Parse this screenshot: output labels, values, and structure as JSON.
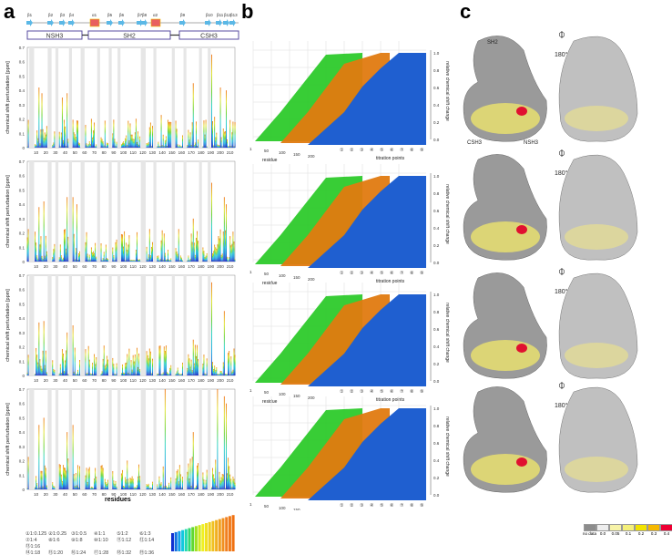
{
  "panels": {
    "a": "a",
    "b": "b",
    "c": "c"
  },
  "topology": {
    "strands": [
      "β1",
      "β2",
      "β3",
      "β4",
      "β5",
      "β6",
      "β7",
      "β8",
      "β9",
      "β10",
      "β11",
      "β12",
      "β13"
    ],
    "helices": [
      "α1",
      "α2"
    ],
    "domains": [
      "NSH3",
      "SH2",
      "CSH3"
    ]
  },
  "structure_labels": {
    "sh2": "SH2",
    "csh3": "CSH3",
    "nsh3": "NSH3",
    "rotation": "180°"
  },
  "colorbar": {
    "labels": [
      "no data",
      "0.0",
      "0.05",
      "0.1",
      "0.2",
      "0.3",
      "0.4",
      "(ppm)"
    ],
    "colors": [
      "#8c8c8c",
      "#eeeeee",
      "#f7f3a8",
      "#f5f07a",
      "#f2e300",
      "#f5b800",
      "#ee0033"
    ]
  },
  "legend": {
    "items": [
      "①1:0.125",
      "②1:0.25",
      "③1:0.5",
      "④1:1",
      "⑤1:2",
      "⑥1:3",
      "⑦1:4",
      "⑧1:6",
      "⑨1:8",
      "⑩1:10",
      "⑪1:12",
      "⑫1:14",
      "⑬1:16",
      "⑭1:18",
      "⑮1:20",
      "⑯1:24",
      "⑰1:28",
      "⑱1:32",
      "⑲1:36"
    ]
  },
  "chart_data": [
    {
      "type": "bar",
      "title": "",
      "xlabel": "residues",
      "ylabel": "chemical shift perturbation [ppm]",
      "xlim": [
        1,
        215
      ],
      "ylim": [
        0,
        0.7
      ],
      "xticks": [
        "10",
        "20",
        "30",
        "40",
        "50",
        "60",
        "70",
        "80",
        "90",
        "100",
        "110",
        "120",
        "130",
        "140",
        "150",
        "160",
        "170",
        "180",
        "190",
        "200",
        "210"
      ],
      "yticks": [
        "0",
        "0.1",
        "0.2",
        "0.3",
        "0.4",
        "0.5",
        "0.6",
        "0.7"
      ],
      "peaks": [
        [
          13,
          0.42
        ],
        [
          16,
          0.38
        ],
        [
          37,
          0.35
        ],
        [
          42,
          0.38
        ],
        [
          120,
          0.38
        ],
        [
          172,
          0.45
        ],
        [
          191,
          0.65
        ],
        [
          200,
          0.42
        ],
        [
          206,
          0.4
        ]
      ]
    },
    {
      "type": "bar",
      "xlabel": "residues",
      "ylabel": "chemical shift perturbation [ppm]",
      "xlim": [
        1,
        215
      ],
      "ylim": [
        0,
        0.7
      ],
      "peaks": [
        [
          13,
          0.38
        ],
        [
          18,
          0.42
        ],
        [
          42,
          0.45
        ],
        [
          48,
          0.45
        ],
        [
          52,
          0.4
        ],
        [
          120,
          0.28
        ],
        [
          172,
          0.3
        ],
        [
          191,
          0.55
        ],
        [
          204,
          0.45
        ],
        [
          206,
          0.4
        ]
      ]
    },
    {
      "type": "bar",
      "xlabel": "residues",
      "ylabel": "chemical shift perturbation [ppm]",
      "xlim": [
        1,
        215
      ],
      "ylim": [
        0,
        0.7
      ],
      "peaks": [
        [
          13,
          0.37
        ],
        [
          18,
          0.38
        ],
        [
          42,
          0.3
        ],
        [
          48,
          0.35
        ],
        [
          120,
          0.25
        ],
        [
          172,
          0.25
        ],
        [
          191,
          0.65
        ],
        [
          204,
          0.45
        ]
      ]
    },
    {
      "type": "bar",
      "xlabel": "residues",
      "ylabel": "chemical shift perturbation [ppm]",
      "xlim": [
        1,
        215
      ],
      "ylim": [
        0,
        0.7
      ],
      "peaks": [
        [
          13,
          0.45
        ],
        [
          18,
          0.5
        ],
        [
          42,
          0.4
        ],
        [
          48,
          0.45
        ],
        [
          120,
          0.35
        ],
        [
          143,
          0.7
        ],
        [
          172,
          0.4
        ],
        [
          197,
          0.7
        ],
        [
          204,
          0.65
        ],
        [
          206,
          0.6
        ]
      ]
    }
  ],
  "plot3d": {
    "xlabel": "residue",
    "ylabel": "titration points",
    "zlabel": "relative chemical shift change",
    "xticks": [
      "1",
      "50",
      "100",
      "150",
      "200"
    ],
    "zticks": [
      "0.0",
      "0.2",
      "0.4",
      "0.6",
      "0.8",
      "1.0"
    ],
    "yticks": [
      "①",
      "②",
      "③",
      "④",
      "⑤",
      "⑥",
      "⑦",
      "⑧",
      "⑨"
    ]
  }
}
